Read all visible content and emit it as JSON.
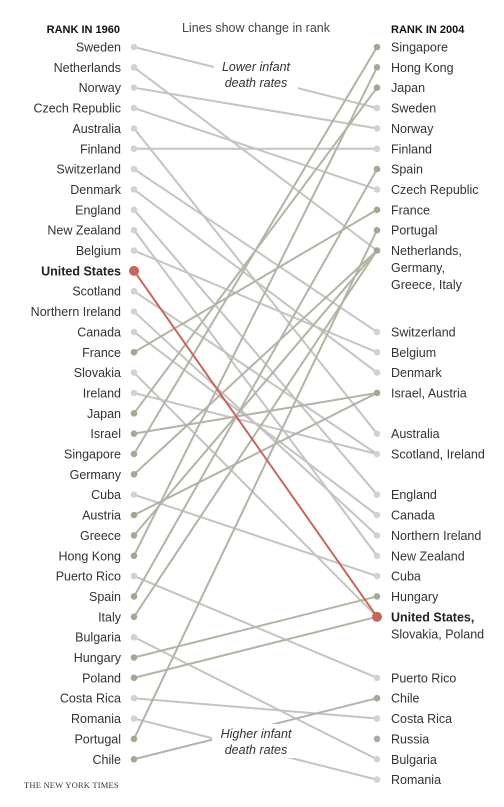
{
  "chart_data": {
    "type": "slope",
    "left_header": "RANK IN 1960",
    "right_header": "RANK IN 2004",
    "subtitle": "Lines show change in rank",
    "annotation_top": [
      "Lower infant",
      "death rates"
    ],
    "annotation_bottom": [
      "Higher infant",
      "death rates"
    ],
    "source": "THE NEW YORK TIMES",
    "highlight": "United States",
    "left": [
      {
        "name": "Sweden",
        "rank": 1
      },
      {
        "name": "Netherlands",
        "rank": 2
      },
      {
        "name": "Norway",
        "rank": 3
      },
      {
        "name": "Czech Republic",
        "rank": 4
      },
      {
        "name": "Australia",
        "rank": 5
      },
      {
        "name": "Finland",
        "rank": 6
      },
      {
        "name": "Switzerland",
        "rank": 7
      },
      {
        "name": "Denmark",
        "rank": 8
      },
      {
        "name": "England",
        "rank": 9
      },
      {
        "name": "New Zealand",
        "rank": 10
      },
      {
        "name": "Belgium",
        "rank": 11
      },
      {
        "name": "United States",
        "rank": 12
      },
      {
        "name": "Scotland",
        "rank": 13
      },
      {
        "name": "Northern Ireland",
        "rank": 14
      },
      {
        "name": "Canada",
        "rank": 15
      },
      {
        "name": "France",
        "rank": 16
      },
      {
        "name": "Slovakia",
        "rank": 17
      },
      {
        "name": "Ireland",
        "rank": 18
      },
      {
        "name": "Japan",
        "rank": 19
      },
      {
        "name": "Israel",
        "rank": 20
      },
      {
        "name": "Singapore",
        "rank": 21
      },
      {
        "name": "Germany",
        "rank": 22
      },
      {
        "name": "Cuba",
        "rank": 23
      },
      {
        "name": "Austria",
        "rank": 24
      },
      {
        "name": "Greece",
        "rank": 25
      },
      {
        "name": "Hong Kong",
        "rank": 26
      },
      {
        "name": "Puerto Rico",
        "rank": 27
      },
      {
        "name": "Spain",
        "rank": 28
      },
      {
        "name": "Italy",
        "rank": 29
      },
      {
        "name": "Bulgaria",
        "rank": 30
      },
      {
        "name": "Hungary",
        "rank": 31
      },
      {
        "name": "Poland",
        "rank": 32
      },
      {
        "name": "Costa Rica",
        "rank": 33
      },
      {
        "name": "Romania",
        "rank": 34
      },
      {
        "name": "Portugal",
        "rank": 35
      },
      {
        "name": "Chile",
        "rank": 36
      }
    ],
    "right": [
      {
        "rank": 1,
        "lines": [
          "Singapore"
        ]
      },
      {
        "rank": 2,
        "lines": [
          "Hong Kong"
        ]
      },
      {
        "rank": 3,
        "lines": [
          "Japan"
        ]
      },
      {
        "rank": 4,
        "lines": [
          "Sweden"
        ]
      },
      {
        "rank": 5,
        "lines": [
          "Norway"
        ]
      },
      {
        "rank": 6,
        "lines": [
          "Finland"
        ]
      },
      {
        "rank": 7,
        "lines": [
          "Spain"
        ]
      },
      {
        "rank": 8,
        "lines": [
          "Czech Republic"
        ]
      },
      {
        "rank": 9,
        "lines": [
          "France"
        ]
      },
      {
        "rank": 10,
        "lines": [
          "Portugal"
        ]
      },
      {
        "rank": 11,
        "lines": [
          "Netherlands,",
          "Germany,",
          "Greece, Italy"
        ]
      },
      {
        "rank": 15,
        "lines": [
          "Switzerland"
        ]
      },
      {
        "rank": 16,
        "lines": [
          "Belgium"
        ]
      },
      {
        "rank": 17,
        "lines": [
          "Denmark"
        ]
      },
      {
        "rank": 18,
        "lines": [
          "Israel, Austria"
        ]
      },
      {
        "rank": 20,
        "lines": [
          "Australia"
        ]
      },
      {
        "rank": 21,
        "lines": [
          "Scotland, Ireland"
        ]
      },
      {
        "rank": 23,
        "lines": [
          "England"
        ]
      },
      {
        "rank": 24,
        "lines": [
          "Canada"
        ]
      },
      {
        "rank": 25,
        "lines": [
          "Northern Ireland"
        ]
      },
      {
        "rank": 26,
        "lines": [
          "New Zealand"
        ]
      },
      {
        "rank": 27,
        "lines": [
          "Cuba"
        ]
      },
      {
        "rank": 28,
        "lines": [
          "Hungary"
        ]
      },
      {
        "rank": 29,
        "lines": [
          "United States,",
          "Slovakia, Poland"
        ],
        "bold_first": true
      },
      {
        "rank": 32,
        "lines": [
          "Puerto Rico"
        ]
      },
      {
        "rank": 33,
        "lines": [
          "Chile"
        ]
      },
      {
        "rank": 34,
        "lines": [
          "Costa Rica"
        ]
      },
      {
        "rank": 35,
        "lines": [
          "Russia"
        ]
      },
      {
        "rank": 36,
        "lines": [
          "Bulgaria"
        ]
      },
      {
        "rank": 37,
        "lines": [
          "Romania"
        ]
      }
    ],
    "links": [
      [
        "Sweden",
        4
      ],
      [
        "Netherlands",
        11
      ],
      [
        "Norway",
        5
      ],
      [
        "Czech Republic",
        8
      ],
      [
        "Australia",
        20
      ],
      [
        "Finland",
        6
      ],
      [
        "Switzerland",
        15
      ],
      [
        "Denmark",
        17
      ],
      [
        "England",
        23
      ],
      [
        "New Zealand",
        26
      ],
      [
        "Belgium",
        16
      ],
      [
        "United States",
        29
      ],
      [
        "Scotland",
        21
      ],
      [
        "Northern Ireland",
        25
      ],
      [
        "Canada",
        24
      ],
      [
        "France",
        9
      ],
      [
        "Slovakia",
        29
      ],
      [
        "Ireland",
        21
      ],
      [
        "Japan",
        3
      ],
      [
        "Israel",
        18
      ],
      [
        "Singapore",
        1
      ],
      [
        "Germany",
        11
      ],
      [
        "Cuba",
        27
      ],
      [
        "Austria",
        18
      ],
      [
        "Greece",
        11
      ],
      [
        "Hong Kong",
        2
      ],
      [
        "Puerto Rico",
        32
      ],
      [
        "Spain",
        7
      ],
      [
        "Italy",
        11
      ],
      [
        "Bulgaria",
        36
      ],
      [
        "Hungary",
        28
      ],
      [
        "Poland",
        29
      ],
      [
        "Costa Rica",
        34
      ],
      [
        "Romania",
        37
      ],
      [
        "Portugal",
        10
      ],
      [
        "Chile",
        33
      ]
    ],
    "colors": {
      "line": "#c4c4c4",
      "dot_light": "#cfd3d6",
      "dot_olive": "#a3a893",
      "line_olive": "#b3b3a6",
      "highlight": "#c7665a",
      "russia_dot": "#a8aaa6"
    }
  }
}
